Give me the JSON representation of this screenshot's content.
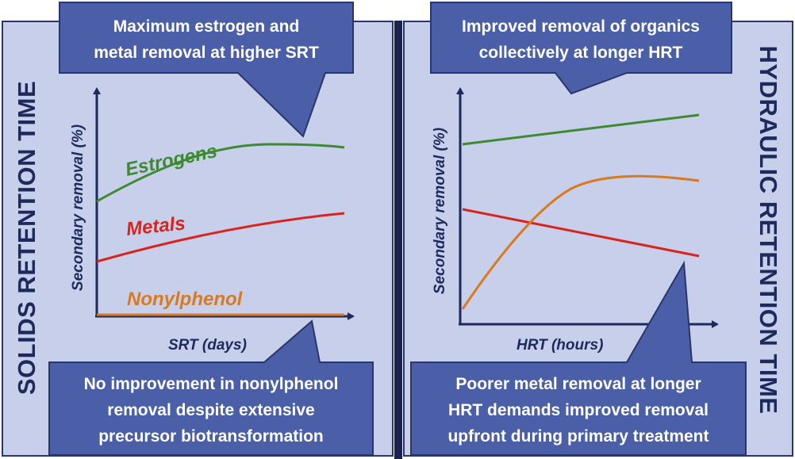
{
  "left_panel": {
    "side_title": "SOLIDS RETENTION TIME",
    "x_label": "SRT (days)",
    "y_label": "Secondary removal (%)",
    "callout_top": [
      "Maximum estrogen and",
      "metal removal at higher SRT"
    ],
    "callout_bottom": [
      "No improvement in nonylphenol",
      "removal despite extensive",
      "precursor biotransformation"
    ],
    "series_labels": {
      "estrogens": "Estrogens",
      "metals": "Metals",
      "nonylphenol": "Nonylphenol"
    }
  },
  "right_panel": {
    "side_title": "HYDRAULIC RETENTION TIME",
    "x_label": "HRT (hours)",
    "y_label": "Secondary removal (%)",
    "callout_top": [
      "Improved  removal of  organics",
      "collectively at longer HRT"
    ],
    "callout_bottom": [
      "Poorer metal removal  at longer",
      "HRT demands improved removal",
      "upfront during primary treatment"
    ]
  },
  "colors": {
    "estrogens": "#3d8a32",
    "metals": "#d9241e",
    "nonylphenol": "#d97a1f",
    "callout_fill": "#4a5fa8",
    "axis": "#1e2a5c",
    "panel_fill": "#c7cfea"
  }
}
